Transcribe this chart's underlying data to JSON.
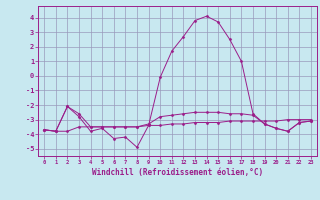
{
  "x": [
    0,
    1,
    2,
    3,
    4,
    5,
    6,
    7,
    8,
    9,
    10,
    11,
    12,
    13,
    14,
    15,
    16,
    17,
    18,
    19,
    20,
    21,
    22,
    23
  ],
  "line1": [
    -3.7,
    -3.8,
    -2.1,
    -2.8,
    -3.8,
    -3.6,
    -4.3,
    -4.2,
    -4.9,
    -3.4,
    -0.1,
    1.7,
    2.7,
    3.8,
    4.1,
    3.7,
    2.5,
    1.0,
    -2.6,
    -3.3,
    -3.6,
    -3.8,
    -3.2,
    -3.1
  ],
  "line2": [
    -3.7,
    -3.8,
    -2.1,
    -2.6,
    -3.5,
    -3.5,
    -3.5,
    -3.5,
    -3.5,
    -3.3,
    -2.8,
    -2.7,
    -2.6,
    -2.5,
    -2.5,
    -2.5,
    -2.6,
    -2.6,
    -2.7,
    -3.3,
    -3.6,
    -3.8,
    -3.2,
    -3.1
  ],
  "line3": [
    -3.7,
    -3.8,
    -3.8,
    -3.5,
    -3.5,
    -3.5,
    -3.5,
    -3.5,
    -3.5,
    -3.4,
    -3.4,
    -3.3,
    -3.3,
    -3.2,
    -3.2,
    -3.2,
    -3.1,
    -3.1,
    -3.1,
    -3.1,
    -3.1,
    -3.0,
    -3.0,
    -3.0
  ],
  "color": "#9b1e8a",
  "bg_color": "#c8e8f0",
  "grid_color": "#9999bb",
  "xlabel": "Windchill (Refroidissement éolien,°C)",
  "ylim": [
    -5.5,
    4.8
  ],
  "xlim": [
    -0.5,
    23.5
  ],
  "yticks": [
    -5,
    -4,
    -3,
    -2,
    -1,
    0,
    1,
    2,
    3,
    4
  ],
  "xticks": [
    0,
    1,
    2,
    3,
    4,
    5,
    6,
    7,
    8,
    9,
    10,
    11,
    12,
    13,
    14,
    15,
    16,
    17,
    18,
    19,
    20,
    21,
    22,
    23
  ]
}
